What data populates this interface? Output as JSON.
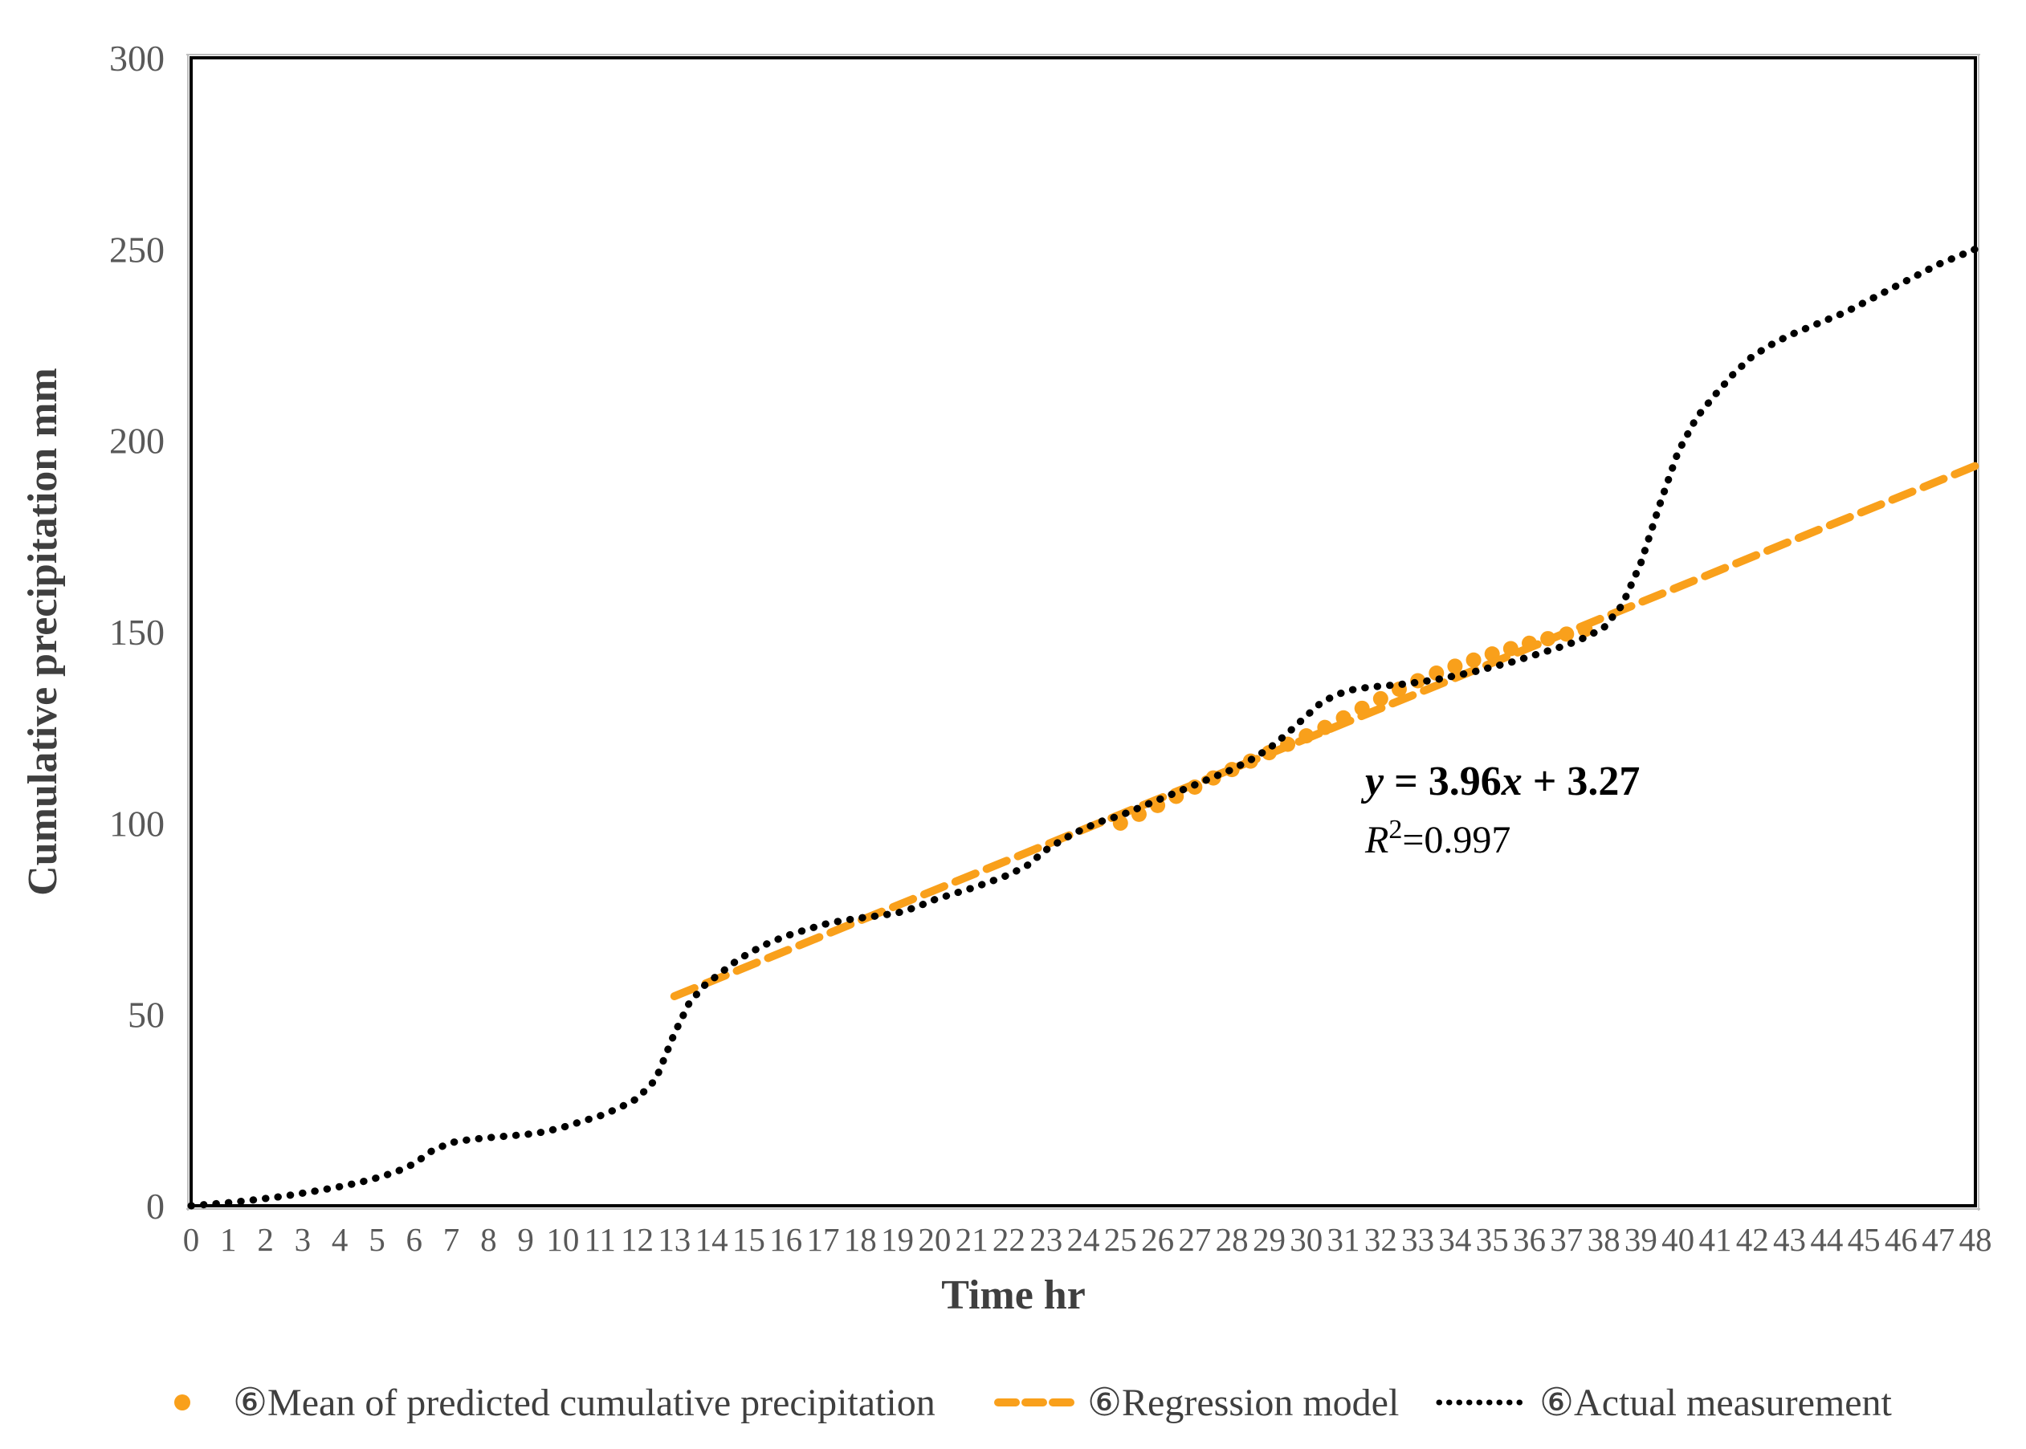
{
  "chart_data": {
    "type": "line",
    "title": "",
    "xlabel": "Time hr",
    "ylabel": "Cumulative precipitation  mm",
    "xlim": [
      0,
      48
    ],
    "ylim": [
      0,
      300
    ],
    "xticks": [
      0,
      1,
      2,
      3,
      4,
      5,
      6,
      7,
      8,
      9,
      10,
      11,
      12,
      13,
      14,
      15,
      16,
      17,
      18,
      19,
      20,
      21,
      22,
      23,
      24,
      25,
      26,
      27,
      28,
      29,
      30,
      31,
      32,
      33,
      34,
      35,
      36,
      37,
      38,
      39,
      40,
      41,
      42,
      43,
      44,
      45,
      46,
      47,
      48
    ],
    "yticks": [
      0,
      50,
      100,
      150,
      200,
      250,
      300
    ],
    "grid": false,
    "legend_position": "bottom",
    "annotation": {
      "equation_text": "y = 3.96x + 3.27",
      "equation_parts": [
        {
          "t": "y",
          "i": true
        },
        {
          "t": " = 3.96"
        },
        {
          "t": "x",
          "i": true
        },
        {
          "t": " + 3.27"
        }
      ],
      "r2_text": "R2=0.997",
      "r2_parts": [
        {
          "t": "R",
          "i": true
        },
        {
          "t": "2",
          "sup": true
        },
        {
          "t": "=0.997"
        }
      ]
    },
    "series": [
      {
        "name": "⑥Mean of predicted cumulative precipitation",
        "type": "scatter",
        "color": "#F9A01B",
        "points": [
          [
            25,
            100
          ],
          [
            25.5,
            102.3
          ],
          [
            26,
            104.6
          ],
          [
            26.5,
            107
          ],
          [
            27,
            109.4
          ],
          [
            27.5,
            111.8
          ],
          [
            28,
            114
          ],
          [
            28.5,
            116.2
          ],
          [
            29,
            118.4
          ],
          [
            29.5,
            120.6
          ],
          [
            30,
            122.8
          ],
          [
            30.5,
            125
          ],
          [
            31,
            127.5
          ],
          [
            31.5,
            130
          ],
          [
            32,
            132.5
          ],
          [
            32.5,
            135
          ],
          [
            33,
            137.2
          ],
          [
            33.5,
            139.2
          ],
          [
            34,
            141
          ],
          [
            34.5,
            142.6
          ],
          [
            35,
            144.2
          ],
          [
            35.5,
            145.6
          ],
          [
            36,
            147
          ],
          [
            36.5,
            148.2
          ],
          [
            37,
            149.4
          ],
          [
            37.5,
            150.6
          ]
        ]
      },
      {
        "name": "⑥Regression model",
        "type": "dashed-line",
        "color": "#F9A01B",
        "points": [
          [
            13,
            54.75
          ],
          [
            48,
            193.35
          ]
        ]
      },
      {
        "name": "⑥Actual measurement",
        "type": "dotted-line",
        "color": "#000000",
        "points": [
          [
            0,
            0
          ],
          [
            0.5,
            0.4
          ],
          [
            1,
            0.8
          ],
          [
            1.5,
            1.3
          ],
          [
            2,
            1.9
          ],
          [
            2.5,
            2.5
          ],
          [
            3,
            3.3
          ],
          [
            3.5,
            4.1
          ],
          [
            4,
            5
          ],
          [
            4.5,
            6
          ],
          [
            5,
            7.3
          ],
          [
            5.5,
            8.8
          ],
          [
            6,
            11
          ],
          [
            6.5,
            14.5
          ],
          [
            7,
            16.5
          ],
          [
            7.5,
            17.3
          ],
          [
            8,
            17.8
          ],
          [
            8.5,
            18.2
          ],
          [
            9,
            18.6
          ],
          [
            9.5,
            19.3
          ],
          [
            10,
            20.5
          ],
          [
            10.5,
            22
          ],
          [
            11,
            23.5
          ],
          [
            11.5,
            25.5
          ],
          [
            12,
            28
          ],
          [
            12.5,
            33
          ],
          [
            13,
            45
          ],
          [
            13.4,
            53
          ],
          [
            13.8,
            57.5
          ],
          [
            14.2,
            60.5
          ],
          [
            14.6,
            63.5
          ],
          [
            15,
            66
          ],
          [
            15.5,
            68.5
          ],
          [
            16,
            70.5
          ],
          [
            16.5,
            72
          ],
          [
            17,
            73.5
          ],
          [
            17.5,
            74.5
          ],
          [
            18,
            75.2
          ],
          [
            18.5,
            75.8
          ],
          [
            19,
            76.5
          ],
          [
            19.5,
            78
          ],
          [
            20,
            80
          ],
          [
            20.5,
            81.5
          ],
          [
            21,
            83
          ],
          [
            21.5,
            84.7
          ],
          [
            22,
            86.5
          ],
          [
            22.5,
            89
          ],
          [
            23,
            93
          ],
          [
            23.5,
            96
          ],
          [
            24,
            98.5
          ],
          [
            24.5,
            100.5
          ],
          [
            25,
            102
          ],
          [
            25.5,
            104
          ],
          [
            26,
            106
          ],
          [
            26.5,
            108
          ],
          [
            27,
            110
          ],
          [
            27.5,
            112
          ],
          [
            28,
            114
          ],
          [
            28.5,
            116.5
          ],
          [
            29,
            119.5
          ],
          [
            29.5,
            123.5
          ],
          [
            30,
            128
          ],
          [
            30.4,
            131.5
          ],
          [
            30.8,
            133.5
          ],
          [
            31.2,
            134.8
          ],
          [
            31.6,
            135.4
          ],
          [
            32,
            135.8
          ],
          [
            32.5,
            136.2
          ],
          [
            33,
            136.8
          ],
          [
            33.5,
            137.5
          ],
          [
            34,
            138.5
          ],
          [
            34.5,
            139.5
          ],
          [
            35,
            140.8
          ],
          [
            35.5,
            142
          ],
          [
            36,
            143.5
          ],
          [
            36.5,
            145
          ],
          [
            37,
            146.5
          ],
          [
            37.5,
            148.5
          ],
          [
            38,
            151
          ],
          [
            38.5,
            157
          ],
          [
            39,
            168
          ],
          [
            39.5,
            183
          ],
          [
            40,
            197
          ],
          [
            40.5,
            206
          ],
          [
            41,
            212
          ],
          [
            41.5,
            217.5
          ],
          [
            42,
            222
          ],
          [
            42.5,
            225
          ],
          [
            43,
            227.5
          ],
          [
            43.5,
            229.5
          ],
          [
            44,
            231.5
          ],
          [
            44.5,
            233.5
          ],
          [
            45,
            236
          ],
          [
            45.5,
            238.5
          ],
          [
            46,
            241
          ],
          [
            46.5,
            243.5
          ],
          [
            47,
            246
          ],
          [
            47.5,
            248
          ],
          [
            48,
            250
          ]
        ]
      }
    ]
  },
  "legend": {
    "items": [
      {
        "marker": "dot",
        "label": "⑥Mean of predicted cumulative precipitation"
      },
      {
        "marker": "dash",
        "label": "⑥Regression model"
      },
      {
        "marker": "dotted",
        "label": "⑥Actual measurement"
      }
    ]
  },
  "colors": {
    "accent_orange": "#F9A01B",
    "series_black": "#000000",
    "tick_gray": "#595959",
    "title_gray": "#3F3F3F",
    "axis_black": "#000000",
    "axis_shadow_gray": "#BFBFBF",
    "background": "#FFFFFF"
  }
}
